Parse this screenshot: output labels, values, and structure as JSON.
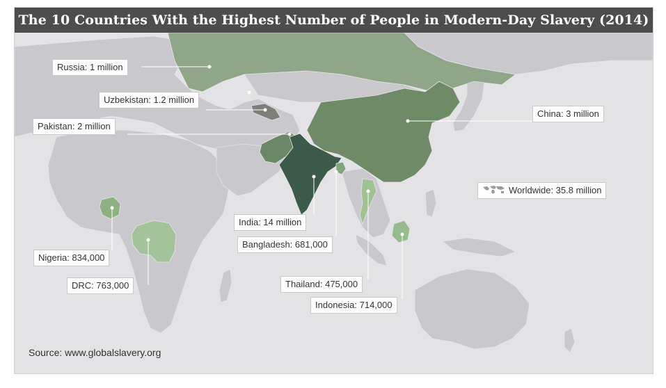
{
  "title": "The 10 Countries With the Highest Number of People in Modern-Day Slavery (2014)",
  "colors": {
    "land": "#c9c9cd",
    "ocean": "#e3e3e5",
    "borders": "#e6e6e8",
    "russia": "#8fa688",
    "china": "#6e8a66",
    "india": "#3c5a49",
    "pakistan": "#6a8866",
    "uzbekistan": "#7f7f7a",
    "nigeria": "#8db27f",
    "drc": "#a3c39b",
    "thailand": "#9fc293",
    "indonesia": "#96bb8c",
    "bangladesh": "#7fa57a",
    "title_bar": "#4d4d4d"
  },
  "labels": {
    "russia": "Russia: 1 million",
    "uzbekistan": "Uzbekistan: 1.2 million",
    "pakistan": "Pakistan: 2 million",
    "china": "China: 3 million",
    "worldwide": "Worldwide: 35.8 million",
    "india": "India: 14 million",
    "bangladesh": "Bangladesh: 681,000",
    "nigeria": "Nigeria: 834,000",
    "drc": "DRC: 763,000",
    "thailand": "Thailand: 475,000",
    "indonesia": "Indonesia: 714,000"
  },
  "icons": {
    "worldwide": "world-map-icon"
  },
  "source": "Source: www.globalslavery.org"
}
